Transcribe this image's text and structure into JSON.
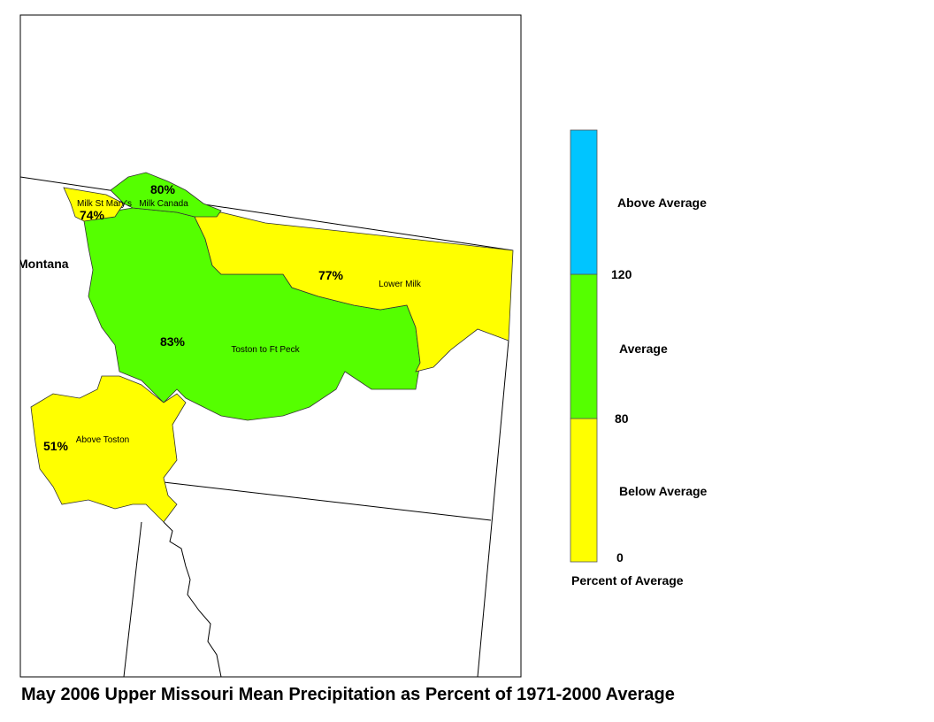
{
  "title": "May 2006 Upper Missouri Mean Precipitation as Percent of 1971-2000 Average",
  "state_label": "Montana",
  "regions": [
    {
      "name": "Toston to Ft Peck",
      "percent": "83%",
      "color": "#55ff00"
    },
    {
      "name": "Lower Milk",
      "percent": "77%",
      "color": "#ffff00"
    },
    {
      "name": "Above Toston",
      "percent": "51%",
      "color": "#ffff00"
    },
    {
      "name": "Milk St Mary's",
      "percent": "74%",
      "color": "#ffff00"
    },
    {
      "name": "Milk Canada",
      "percent": "80%",
      "color": "#55ff00"
    }
  ],
  "legend": {
    "title": "Percent of Average",
    "classes": [
      {
        "label": "Below Average",
        "color": "#ffff00"
      },
      {
        "label": "Average",
        "color": "#55ff00"
      },
      {
        "label": "Above Average",
        "color": "#00c5ff"
      }
    ],
    "ticks": [
      "0",
      "80",
      "120"
    ]
  }
}
